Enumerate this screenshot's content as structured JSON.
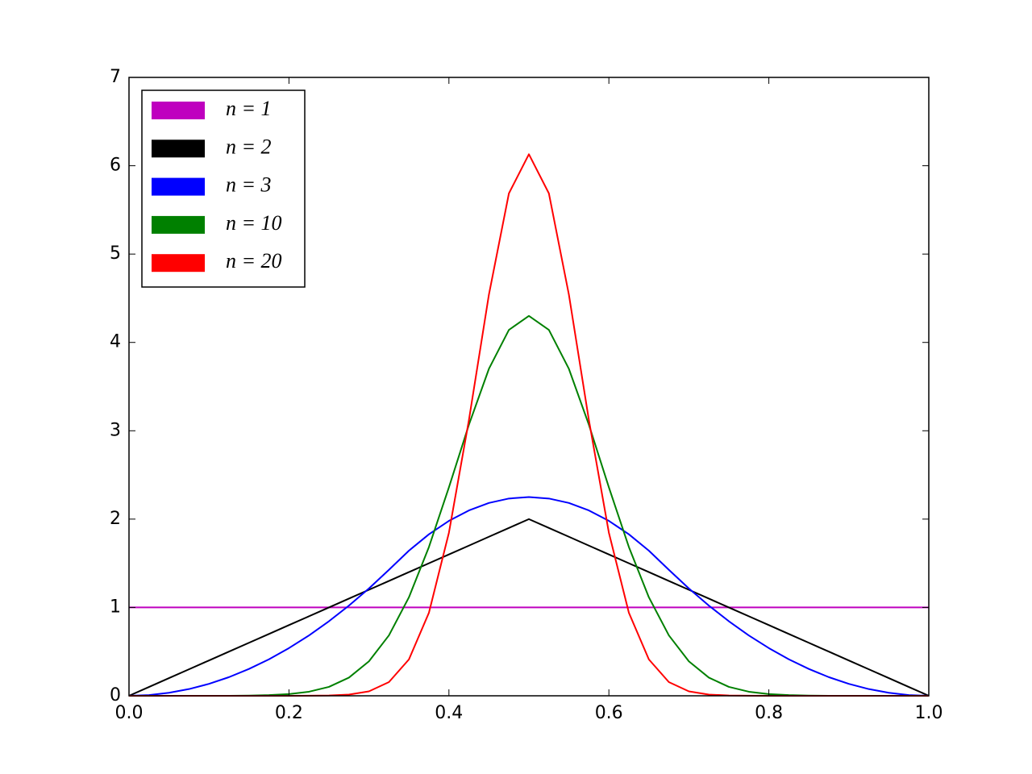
{
  "chart_data": {
    "type": "line",
    "x": [
      0,
      0.025,
      0.05,
      0.075,
      0.1,
      0.125,
      0.15,
      0.175,
      0.2,
      0.225,
      0.25,
      0.275,
      0.3,
      0.325,
      0.35,
      0.375,
      0.4,
      0.425,
      0.45,
      0.475,
      0.5,
      0.525,
      0.55,
      0.575,
      0.6,
      0.625,
      0.65,
      0.675,
      0.7,
      0.725,
      0.75,
      0.775,
      0.8,
      0.825,
      0.85,
      0.875,
      0.9,
      0.925,
      0.95,
      0.975,
      1
    ],
    "series": [
      {
        "name": "n = 1",
        "color": "#bf00bf",
        "values": [
          1,
          1,
          1,
          1,
          1,
          1,
          1,
          1,
          1,
          1,
          1,
          1,
          1,
          1,
          1,
          1,
          1,
          1,
          1,
          1,
          1,
          1,
          1,
          1,
          1,
          1,
          1,
          1,
          1,
          1,
          1,
          1,
          1,
          1,
          1,
          1,
          1,
          1,
          1,
          1,
          1
        ]
      },
      {
        "name": "n = 2",
        "color": "#000000",
        "values": [
          0,
          0.1,
          0.2,
          0.3,
          0.4,
          0.5,
          0.6,
          0.7,
          0.8,
          0.9,
          1,
          1.1,
          1.2,
          1.3,
          1.4,
          1.5,
          1.6,
          1.7,
          1.8,
          1.9,
          2,
          1.9,
          1.8,
          1.7,
          1.6,
          1.5,
          1.4,
          1.3,
          1.2,
          1.1,
          1,
          0.9,
          0.8,
          0.7,
          0.6,
          0.5,
          0.4,
          0.3,
          0.2,
          0.1,
          0
        ]
      },
      {
        "name": "n = 3",
        "color": "#0000ff",
        "values": [
          0,
          0.008,
          0.034,
          0.076,
          0.135,
          0.211,
          0.304,
          0.413,
          0.54,
          0.683,
          0.844,
          1.021,
          1.215,
          1.426,
          1.643,
          1.828,
          1.98,
          2.098,
          2.183,
          2.233,
          2.25,
          2.233,
          2.183,
          2.098,
          1.98,
          1.828,
          1.643,
          1.426,
          1.215,
          1.021,
          0.844,
          0.683,
          0.54,
          0.413,
          0.304,
          0.211,
          0.135,
          0.076,
          0.034,
          0.008,
          0
        ]
      },
      {
        "name": "n = 10",
        "color": "#008000",
        "values": [
          0,
          0,
          0,
          0,
          0.0001,
          0.0005,
          0.0028,
          0.0076,
          0.019,
          0.046,
          0.101,
          0.206,
          0.39,
          0.684,
          1.115,
          1.684,
          2.36,
          3.068,
          3.701,
          4.142,
          4.3,
          4.142,
          3.701,
          3.068,
          2.36,
          1.684,
          1.115,
          0.684,
          0.39,
          0.206,
          0.101,
          0.046,
          0.019,
          0.0076,
          0.0028,
          0.0005,
          0.0001,
          0,
          0,
          0,
          0
        ]
      },
      {
        "name": "n = 20",
        "color": "#ff0000",
        "values": [
          0,
          0,
          0,
          0,
          0,
          0,
          0,
          0,
          0.0001,
          0.0007,
          0.0034,
          0.014,
          0.05,
          0.155,
          0.412,
          0.94,
          1.846,
          3.121,
          4.541,
          5.687,
          6.13,
          5.687,
          4.541,
          3.121,
          1.846,
          0.94,
          0.412,
          0.155,
          0.05,
          0.014,
          0.0034,
          0.0007,
          0.0001,
          0,
          0,
          0,
          0,
          0,
          0,
          0,
          0
        ]
      }
    ],
    "xlim": [
      0,
      1
    ],
    "xticks": [
      {
        "value": 0,
        "label": "0.0"
      },
      {
        "value": 0.2,
        "label": "0.2"
      },
      {
        "value": 0.4,
        "label": "0.4"
      },
      {
        "value": 0.6,
        "label": "0.6"
      },
      {
        "value": 0.8,
        "label": "0.8"
      },
      {
        "value": 1,
        "label": "1.0"
      }
    ],
    "ylim": [
      0,
      7
    ],
    "yticks": [
      0,
      1,
      2,
      3,
      4,
      5,
      6,
      7
    ],
    "grid": false,
    "legend": "upper-left"
  }
}
